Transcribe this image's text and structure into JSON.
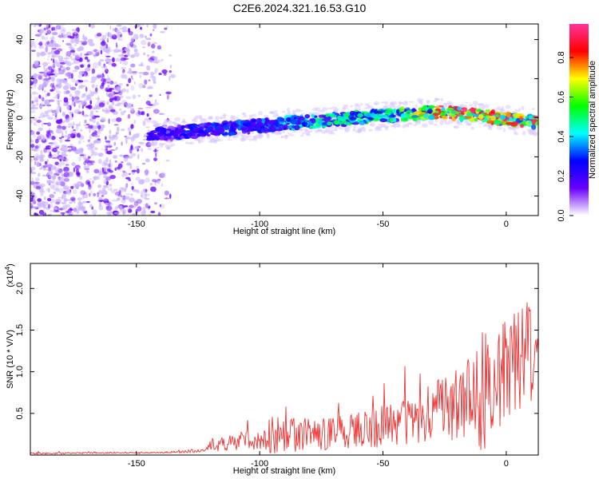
{
  "title": "C2E6.2024.321.16.53.G10",
  "chart_data": [
    {
      "type": "heatmap",
      "xlabel": "Height of straight line (km)",
      "ylabel": "Frequency (Hz)",
      "xlim": [
        -193,
        13
      ],
      "ylim": [
        -50,
        48
      ],
      "xticks": [
        -150,
        -100,
        -50,
        0
      ],
      "yticks": [
        -40,
        -20,
        0,
        20,
        40
      ],
      "colorbar": {
        "label": "Normalized spectral amplitude",
        "range": [
          0,
          0.97
        ],
        "ticks": [
          0.0,
          0.2,
          0.4,
          0.6,
          0.8
        ],
        "colors": [
          "#ffffff",
          "#6a00ff",
          "#0000ff",
          "#00ffff",
          "#00ff00",
          "#ffff00",
          "#ff0000",
          "#ff3399"
        ]
      },
      "ridge": {
        "x": [
          -145,
          -120,
          -100,
          -80,
          -60,
          -40,
          -28,
          -10,
          0,
          12
        ],
        "frequency": [
          -9,
          -6,
          -4,
          -2,
          0,
          2,
          3,
          1,
          -1,
          -2
        ],
        "amplitude": [
          0.25,
          0.3,
          0.35,
          0.45,
          0.55,
          0.6,
          0.85,
          0.9,
          0.9,
          0.85
        ]
      }
    },
    {
      "type": "line",
      "xlabel": "Height of straight line (km)",
      "ylabel": "SNR (10 * V/V)",
      "yscale_label": "(x10",
      "yscale_exp": "4",
      "xlim": [
        -193,
        13
      ],
      "ylim": [
        0,
        2.3
      ],
      "xticks": [
        -150,
        -100,
        -50,
        0
      ],
      "yticks": [
        0.5,
        1.0,
        1.5,
        2.0
      ],
      "color": "#ee3333",
      "envelope": {
        "x": [
          -193,
          -140,
          -122,
          -120,
          -110,
          -100,
          -95,
          -80,
          -60,
          -40,
          -25,
          -15,
          -10,
          -5,
          0,
          5,
          13
        ],
        "mean": [
          0.02,
          0.03,
          0.05,
          0.12,
          0.15,
          0.2,
          0.25,
          0.25,
          0.3,
          0.4,
          0.55,
          0.7,
          0.8,
          0.85,
          1.0,
          1.1,
          1.2
        ],
        "spread": [
          0.01,
          0.01,
          0.02,
          0.08,
          0.1,
          0.15,
          0.25,
          0.2,
          0.22,
          0.3,
          0.4,
          0.5,
          0.8,
          0.6,
          0.7,
          0.9,
          0.5
        ]
      }
    }
  ]
}
